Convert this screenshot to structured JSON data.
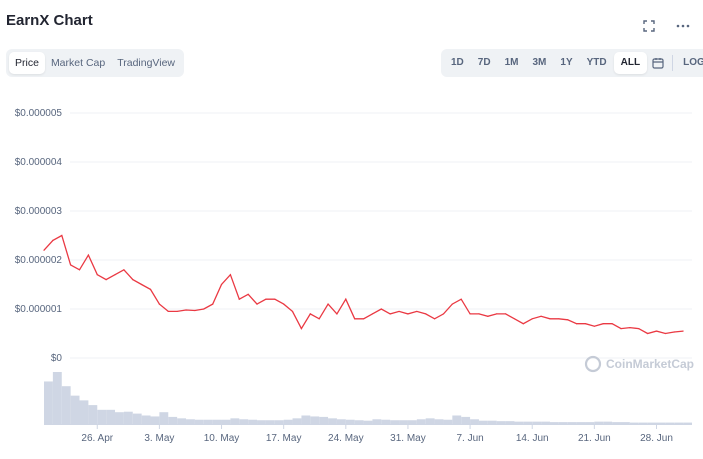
{
  "header": {
    "title": "EarnX Chart"
  },
  "tabs_left": [
    {
      "label": "Price",
      "active": true
    },
    {
      "label": "Market Cap",
      "active": false
    },
    {
      "label": "TradingView",
      "active": false
    }
  ],
  "tabs_right": [
    {
      "label": "1D",
      "active": false
    },
    {
      "label": "7D",
      "active": false
    },
    {
      "label": "1M",
      "active": false
    },
    {
      "label": "3M",
      "active": false
    },
    {
      "label": "1Y",
      "active": false
    },
    {
      "label": "YTD",
      "active": false
    },
    {
      "label": "ALL",
      "active": true
    }
  ],
  "log_label": "LOG",
  "icons": {
    "fullscreen": "fullscreen-icon",
    "more": "more-icon",
    "calendar": "calendar-icon"
  },
  "watermark": "CoinMarketCap",
  "colors": {
    "line": "#ea3943",
    "volume": "#cfd6e4",
    "grid": "#eff2f5",
    "accent": "#3861fb"
  },
  "chart_data": {
    "type": "line",
    "title": "",
    "y_tick_labels": [
      "$0.000005",
      "$0.000004",
      "$0.000003",
      "$0.000002",
      "$0.000001",
      "$0"
    ],
    "ylim": [
      0,
      5e-06
    ],
    "x_tick_labels": [
      "26. Apr",
      "3. May",
      "10. May",
      "17. May",
      "24. May",
      "31. May",
      "7. Jun",
      "14. Jun",
      "21. Jun",
      "28. Jun"
    ],
    "x_range": [
      "2021-04-20",
      "2021-07-02"
    ],
    "series": [
      {
        "dates": [
          "2021-04-20",
          "2021-04-21",
          "2021-04-22",
          "2021-04-23",
          "2021-04-24",
          "2021-04-25",
          "2021-04-26",
          "2021-04-27",
          "2021-04-28",
          "2021-04-29",
          "2021-04-30",
          "2021-05-01",
          "2021-05-02",
          "2021-05-03",
          "2021-05-04",
          "2021-05-05",
          "2021-05-06",
          "2021-05-07",
          "2021-05-08",
          "2021-05-09",
          "2021-05-10",
          "2021-05-11",
          "2021-05-12",
          "2021-05-13",
          "2021-05-14",
          "2021-05-15",
          "2021-05-16",
          "2021-05-17",
          "2021-05-18",
          "2021-05-19",
          "2021-05-20",
          "2021-05-21",
          "2021-05-22",
          "2021-05-23",
          "2021-05-24",
          "2021-05-25",
          "2021-05-26",
          "2021-05-27",
          "2021-05-28",
          "2021-05-29",
          "2021-05-30",
          "2021-05-31",
          "2021-06-01",
          "2021-06-02",
          "2021-06-03",
          "2021-06-04",
          "2021-06-05",
          "2021-06-06",
          "2021-06-07",
          "2021-06-08",
          "2021-06-09",
          "2021-06-10",
          "2021-06-11",
          "2021-06-12",
          "2021-06-13",
          "2021-06-14",
          "2021-06-15",
          "2021-06-16",
          "2021-06-17",
          "2021-06-18",
          "2021-06-19",
          "2021-06-20",
          "2021-06-21",
          "2021-06-22",
          "2021-06-23",
          "2021-06-24",
          "2021-06-25",
          "2021-06-26",
          "2021-06-27",
          "2021-06-28",
          "2021-06-29",
          "2021-06-30",
          "2021-07-01"
        ],
        "values": [
          2.2e-06,
          2.4e-06,
          2.5e-06,
          1.9e-06,
          1.8e-06,
          2.1e-06,
          1.7e-06,
          1.6e-06,
          1.7e-06,
          1.8e-06,
          1.6e-06,
          1.5e-06,
          1.4e-06,
          1.1e-06,
          9.5e-07,
          9.5e-07,
          9.8e-07,
          9.7e-07,
          1e-06,
          1.1e-06,
          1.5e-06,
          1.7e-06,
          1.2e-06,
          1.3e-06,
          1.1e-06,
          1.2e-06,
          1.2e-06,
          1.1e-06,
          9.5e-07,
          6e-07,
          9e-07,
          8e-07,
          1.1e-06,
          9e-07,
          1.2e-06,
          8e-07,
          8e-07,
          9e-07,
          1e-06,
          9e-07,
          9.5e-07,
          9e-07,
          9.5e-07,
          9e-07,
          8e-07,
          9e-07,
          1.1e-06,
          1.2e-06,
          9e-07,
          9e-07,
          8.5e-07,
          9e-07,
          9e-07,
          8e-07,
          7e-07,
          8e-07,
          8.5e-07,
          8e-07,
          8e-07,
          7.8e-07,
          7e-07,
          7e-07,
          6.5e-07,
          7e-07,
          7e-07,
          6e-07,
          6.2e-07,
          6e-07,
          5e-07,
          5.5e-07,
          5e-07,
          5.3e-07,
          5.5e-07
        ]
      }
    ],
    "volume": [
      9,
      11,
      8,
      6,
      5,
      4,
      3,
      3,
      2.5,
      2.6,
      2.2,
      1.8,
      1.6,
      2.5,
      1.5,
      1.2,
      1.0,
      0.9,
      0.9,
      0.9,
      0.9,
      1.2,
      1.0,
      0.9,
      0.8,
      0.8,
      0.8,
      0.9,
      1.2,
      1.8,
      1.6,
      1.5,
      1.2,
      1.0,
      0.9,
      0.8,
      0.7,
      1.0,
      0.9,
      0.8,
      0.8,
      0.8,
      1.0,
      1.2,
      1.0,
      0.9,
      1.8,
      1.5,
      1.0,
      0.7,
      0.7,
      0.6,
      0.6,
      0.5,
      0.5,
      0.5,
      0.5,
      0.4,
      0.4,
      0.4,
      0.4,
      0.4,
      0.5,
      0.5,
      0.4,
      0.4,
      0.3,
      0.3,
      0.3,
      0.3,
      0.3,
      0.3,
      0.3
    ],
    "grid": true,
    "legend": "none"
  }
}
